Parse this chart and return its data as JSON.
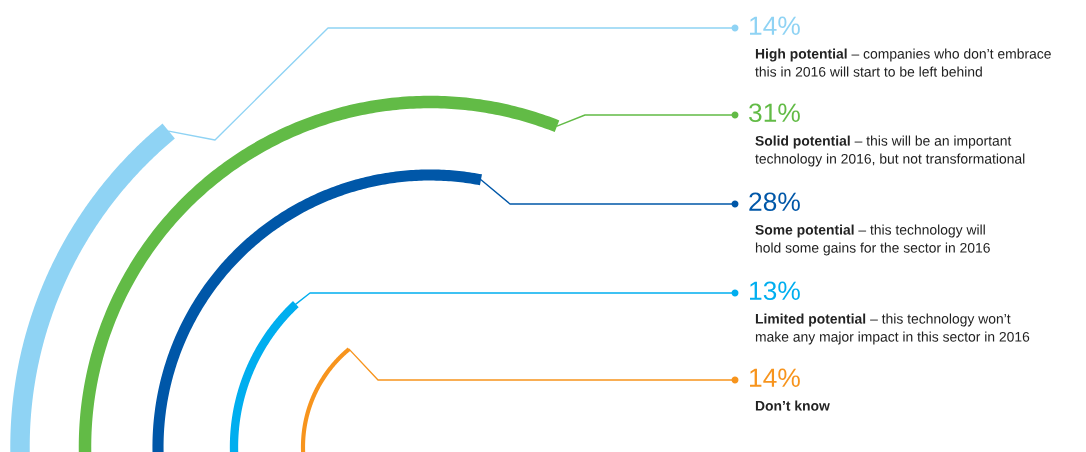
{
  "chart_data": {
    "type": "other",
    "categories": [
      "High potential",
      "Solid potential",
      "Some potential",
      "Limited potential",
      "Don’t know"
    ],
    "values": [
      14,
      31,
      28,
      13,
      14
    ],
    "value_labels": [
      "14%",
      "31%",
      "28%",
      "13%",
      "14%"
    ],
    "colors": [
      "#8fd3f4",
      "#62bb46",
      "#0057a8",
      "#00aeef",
      "#f7941d"
    ],
    "annotations": [
      "– companies who don’t embrace\nthis in 2016 will start to be left behind",
      "– this will be an important\ntechnology in 2016, but not transformational",
      "– this technology will\nhold some gains for the sector in 2016",
      "– this technology won’t\nmake any major impact in this sector in 2016"
    ]
  }
}
